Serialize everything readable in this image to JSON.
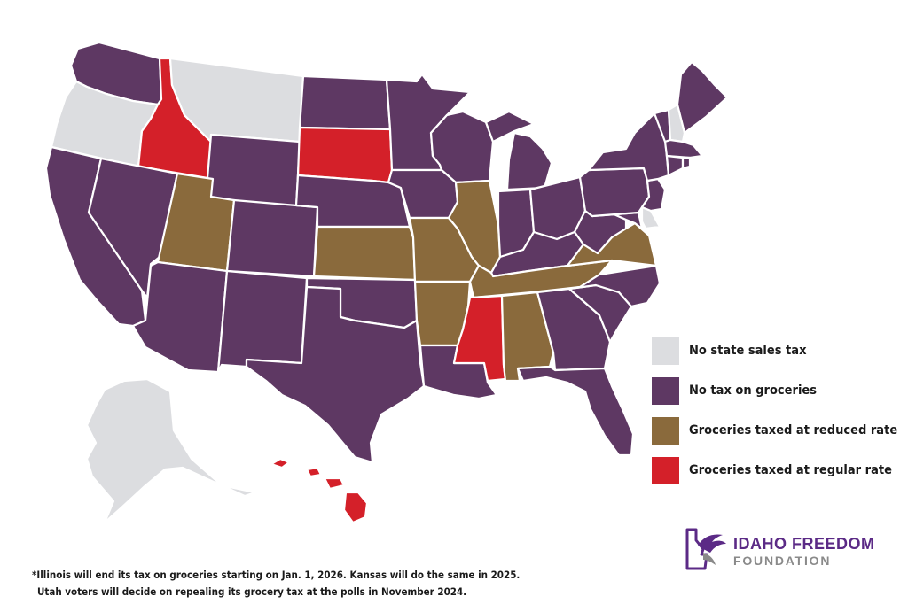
{
  "colors": {
    "none": "#dcdde0",
    "exempt": "#5e3863",
    "reduced": "#8a6a3c",
    "regular": "#d42029"
  },
  "legend": [
    {
      "key": "none",
      "label": "No state sales tax"
    },
    {
      "key": "exempt",
      "label": "No tax on groceries"
    },
    {
      "key": "reduced",
      "label": "Groceries taxed at reduced rate"
    },
    {
      "key": "regular",
      "label": "Groceries taxed at regular rate"
    }
  ],
  "footnote": {
    "line1": "*Illinois will end its tax on groceries starting on Jan. 1, 2026. Kansas will do the same in 2025.",
    "line2": "Utah voters will decide on repealing its grocery tax at the polls in November 2024."
  },
  "logo": {
    "name_line1": "IDAHO FREEDOM",
    "name_line2": "FOUNDATION"
  },
  "states": [
    {
      "id": "WA",
      "cat": "exempt"
    },
    {
      "id": "OR",
      "cat": "none"
    },
    {
      "id": "CA",
      "cat": "exempt"
    },
    {
      "id": "ID",
      "cat": "regular"
    },
    {
      "id": "NV",
      "cat": "exempt"
    },
    {
      "id": "MT",
      "cat": "none"
    },
    {
      "id": "WY",
      "cat": "exempt"
    },
    {
      "id": "UT",
      "cat": "reduced"
    },
    {
      "id": "AZ",
      "cat": "exempt"
    },
    {
      "id": "CO",
      "cat": "exempt"
    },
    {
      "id": "NM",
      "cat": "exempt"
    },
    {
      "id": "ND",
      "cat": "exempt"
    },
    {
      "id": "SD",
      "cat": "regular"
    },
    {
      "id": "NE",
      "cat": "exempt"
    },
    {
      "id": "KS",
      "cat": "reduced"
    },
    {
      "id": "OK",
      "cat": "exempt"
    },
    {
      "id": "TX",
      "cat": "exempt"
    },
    {
      "id": "MN",
      "cat": "exempt"
    },
    {
      "id": "IA",
      "cat": "exempt"
    },
    {
      "id": "MO",
      "cat": "reduced"
    },
    {
      "id": "AR",
      "cat": "reduced"
    },
    {
      "id": "LA",
      "cat": "exempt"
    },
    {
      "id": "WI",
      "cat": "exempt"
    },
    {
      "id": "IL",
      "cat": "reduced"
    },
    {
      "id": "MI",
      "cat": "exempt"
    },
    {
      "id": "IN",
      "cat": "exempt"
    },
    {
      "id": "OH",
      "cat": "exempt"
    },
    {
      "id": "KY",
      "cat": "exempt"
    },
    {
      "id": "TN",
      "cat": "reduced"
    },
    {
      "id": "MS",
      "cat": "regular"
    },
    {
      "id": "AL",
      "cat": "reduced"
    },
    {
      "id": "GA",
      "cat": "exempt"
    },
    {
      "id": "FL",
      "cat": "exempt"
    },
    {
      "id": "SC",
      "cat": "exempt"
    },
    {
      "id": "NC",
      "cat": "exempt"
    },
    {
      "id": "VA",
      "cat": "reduced"
    },
    {
      "id": "WV",
      "cat": "exempt"
    },
    {
      "id": "MD",
      "cat": "exempt"
    },
    {
      "id": "DE",
      "cat": "none"
    },
    {
      "id": "PA",
      "cat": "exempt"
    },
    {
      "id": "NJ",
      "cat": "exempt"
    },
    {
      "id": "NY",
      "cat": "exempt"
    },
    {
      "id": "CT",
      "cat": "exempt"
    },
    {
      "id": "RI",
      "cat": "exempt"
    },
    {
      "id": "MA",
      "cat": "exempt"
    },
    {
      "id": "VT",
      "cat": "exempt"
    },
    {
      "id": "NH",
      "cat": "none"
    },
    {
      "id": "ME",
      "cat": "exempt"
    },
    {
      "id": "AK",
      "cat": "none"
    },
    {
      "id": "HI",
      "cat": "regular"
    }
  ]
}
